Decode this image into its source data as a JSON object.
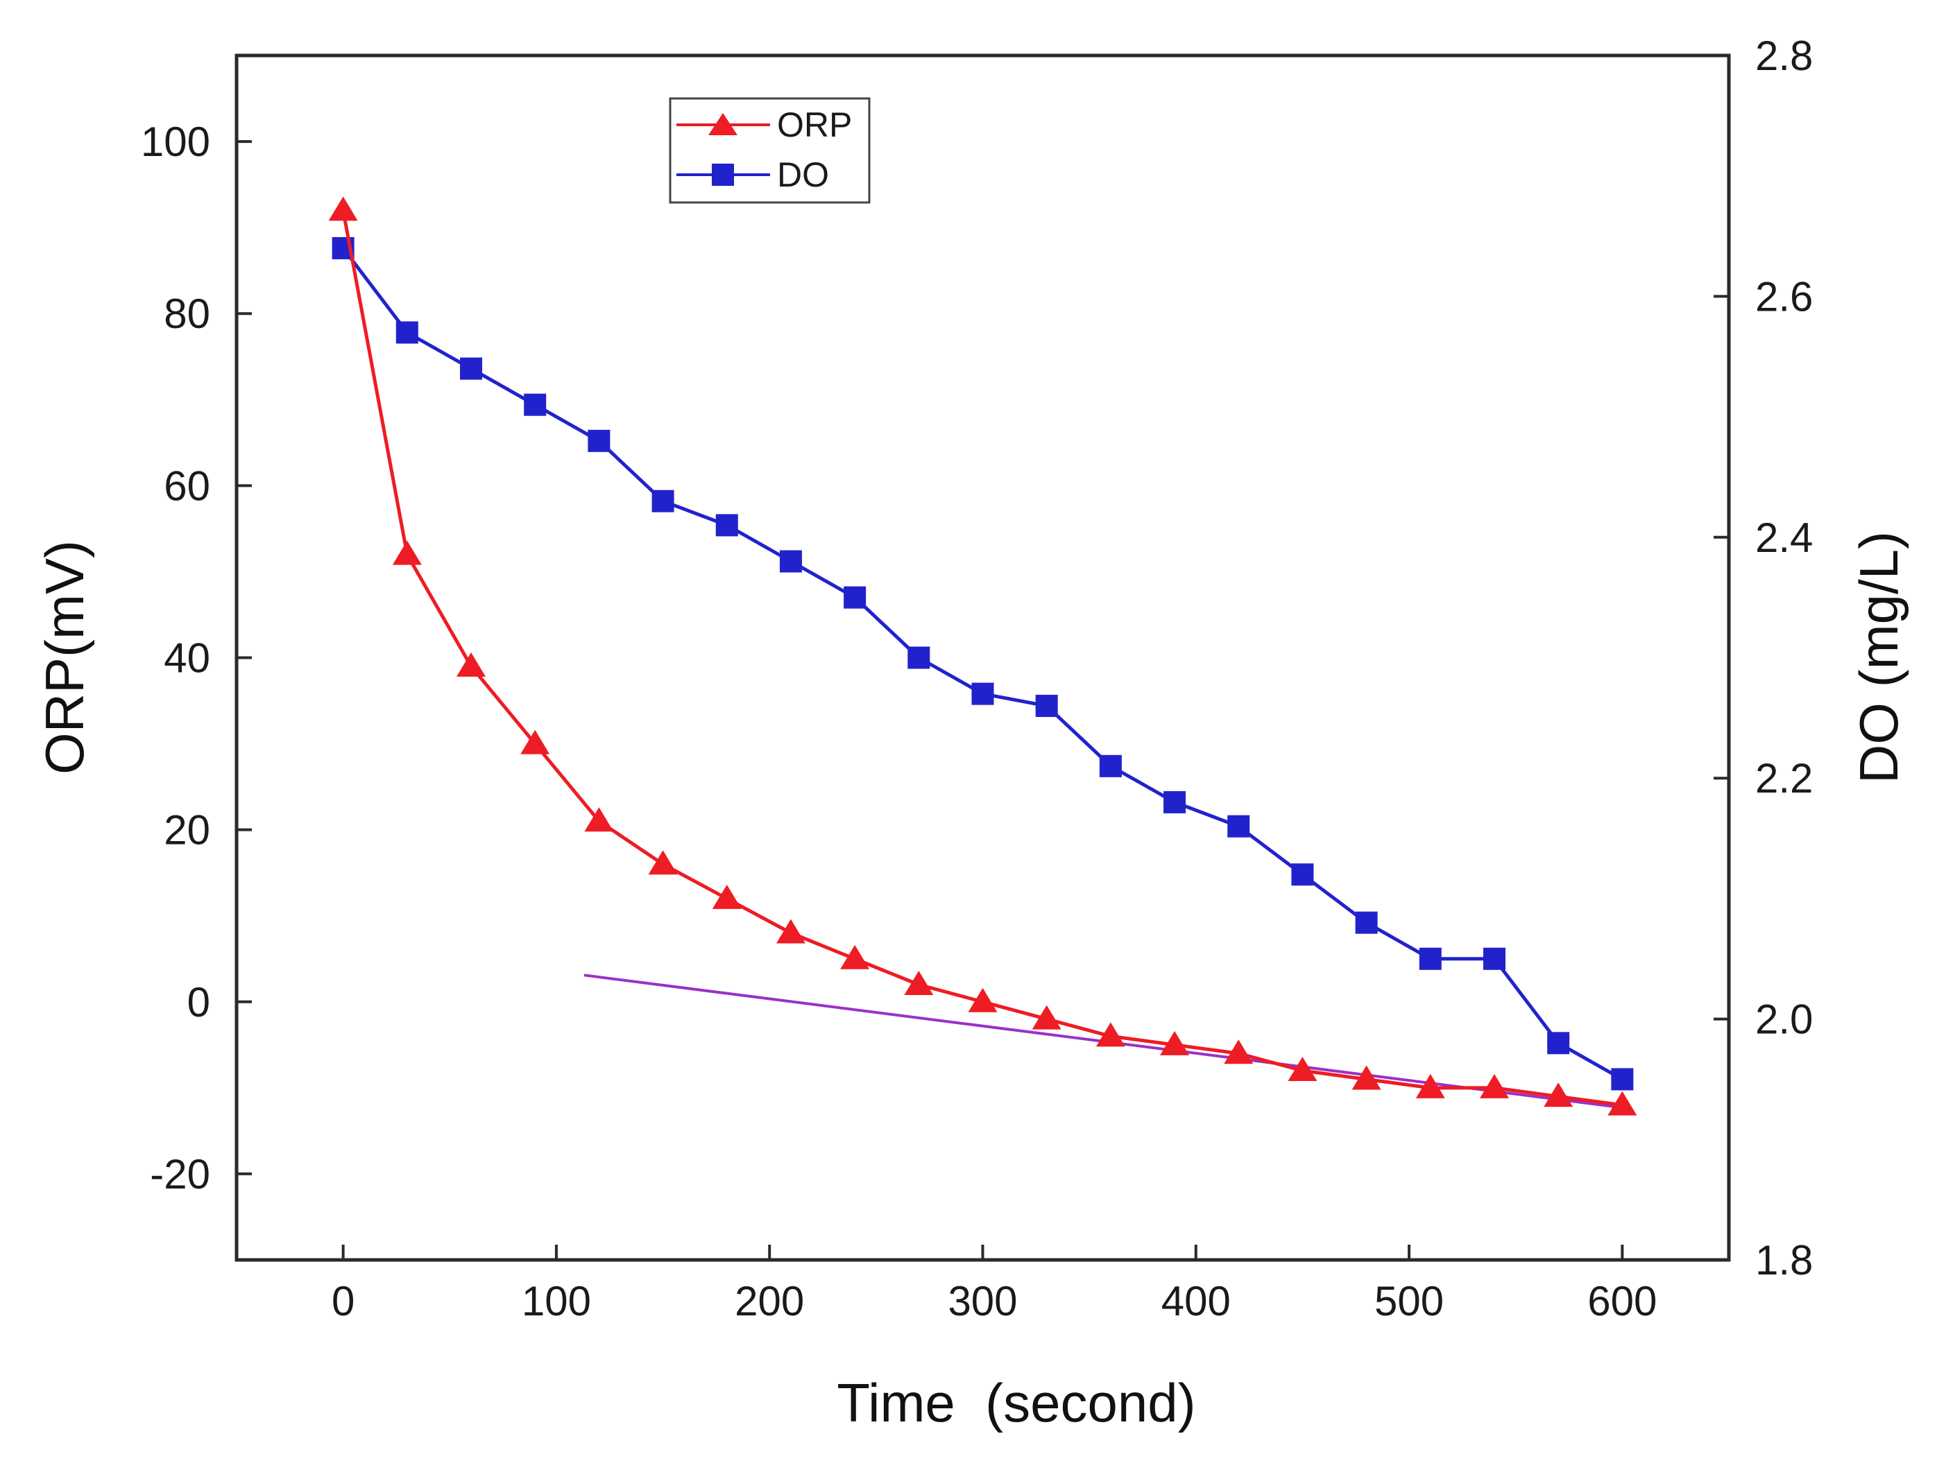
{
  "chart_data": {
    "type": "line",
    "title": "",
    "xlabel": "Time  (second)",
    "ylabel_left": "ORP(mV)",
    "ylabel_right": "DO (mg/L)",
    "xlim": [
      -50,
      650
    ],
    "ylim_left": [
      -30,
      110
    ],
    "ylim_right": [
      1.8,
      2.8
    ],
    "x_ticks": [
      0,
      100,
      200,
      300,
      400,
      500,
      600
    ],
    "x_tick_labels": [
      "0",
      "100",
      "200",
      "300",
      "400",
      "500",
      "600"
    ],
    "y_left_ticks": [
      -20,
      0,
      20,
      40,
      60,
      80,
      100
    ],
    "y_left_tick_labels": [
      "-20",
      "0",
      "20",
      "40",
      "60",
      "80",
      "100"
    ],
    "y_right_ticks": [
      1.8,
      2.0,
      2.2,
      2.4,
      2.6,
      2.8
    ],
    "y_right_tick_labels": [
      "1.8",
      "2.0",
      "2.2",
      "2.4",
      "2.6",
      "2.8"
    ],
    "grid": false,
    "legend_position": "top-center",
    "x": [
      0,
      30,
      60,
      90,
      120,
      150,
      180,
      210,
      240,
      270,
      300,
      330,
      360,
      390,
      420,
      450,
      480,
      510,
      540,
      570,
      600
    ],
    "series": [
      {
        "name": "ORP",
        "axis": "left",
        "color": "#ee1c24",
        "marker": "triangle",
        "values": [
          92,
          52,
          39,
          30,
          21,
          16,
          12,
          8,
          5,
          2,
          0,
          -2,
          -4,
          -5,
          -6,
          -8,
          -9,
          -10,
          -10,
          -11,
          -12
        ]
      },
      {
        "name": "DO",
        "axis": "right",
        "color": "#2222cc",
        "marker": "square",
        "values": [
          2.64,
          2.57,
          2.54,
          2.51,
          2.48,
          2.43,
          2.41,
          2.38,
          2.35,
          2.3,
          2.27,
          2.26,
          2.21,
          2.18,
          2.16,
          2.12,
          2.08,
          2.05,
          2.05,
          1.98,
          1.95
        ]
      }
    ],
    "annotations": [
      {
        "type": "trend-line",
        "axis": "left",
        "color": "#9b30c8",
        "from": [
          113,
          3.1
        ],
        "to": [
          600,
          -12.3
        ]
      }
    ]
  }
}
